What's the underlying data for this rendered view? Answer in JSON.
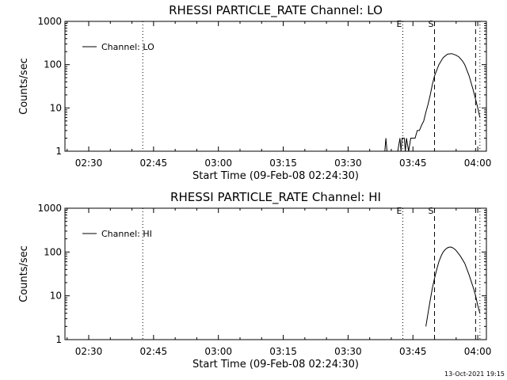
{
  "footer": {
    "date": "13-Oct-2021 19:15"
  },
  "chart_data": [
    {
      "type": "line",
      "title": "RHESSI PARTICLE_RATE Channel: LO",
      "xlabel": "Start Time (09-Feb-08 02:24:30)",
      "ylabel": "Counts/sec",
      "yscale": "log",
      "xlim": [
        "02:24:30",
        "04:02:00"
      ],
      "ylim": [
        1,
        1000
      ],
      "x_ticks": [
        "02:30",
        "02:45",
        "03:00",
        "03:15",
        "03:30",
        "03:45",
        "04:00"
      ],
      "y_ticks": [
        "1",
        "10",
        "100",
        "1000"
      ],
      "legend": {
        "entries": [
          "Channel: LO"
        ],
        "position": "top-left"
      },
      "markers": [
        {
          "label": "",
          "time": "02:42:30",
          "style": "dotted"
        },
        {
          "label": "E",
          "time": "03:42:40",
          "style": "dotted"
        },
        {
          "label": "S",
          "time": "03:50:00",
          "style": "dashed"
        },
        {
          "label": "",
          "time": "03:59:30",
          "style": "dashed"
        },
        {
          "label": "",
          "time": "04:00:30",
          "style": "dotted"
        }
      ],
      "series": [
        {
          "name": "Channel: LO",
          "x": [
            "03:38:30",
            "03:38:45",
            "03:39:00",
            "03:40:00",
            "03:41:00",
            "03:41:30",
            "03:42:00",
            "03:42:15",
            "03:42:30",
            "03:43:00",
            "03:43:15",
            "03:43:30",
            "03:44:00",
            "03:44:30",
            "03:45:00",
            "03:45:30",
            "03:46:00",
            "03:46:30",
            "03:47:00",
            "03:47:30",
            "03:48:00",
            "03:48:30",
            "03:49:00",
            "03:49:30",
            "03:50:00",
            "03:51:00",
            "03:52:00",
            "03:53:00",
            "03:54:00",
            "03:55:00",
            "03:55:40",
            "03:56:30",
            "03:57:00",
            "03:58:00",
            "03:59:00",
            "04:00:00",
            "04:00:30"
          ],
          "y": [
            1,
            2,
            1,
            1,
            1,
            1,
            2,
            1,
            2,
            2,
            1,
            2,
            1,
            2,
            2,
            2,
            3,
            3,
            4,
            5,
            8,
            12,
            20,
            35,
            55,
            100,
            145,
            175,
            180,
            165,
            150,
            120,
            100,
            55,
            25,
            10,
            6
          ]
        }
      ]
    },
    {
      "type": "line",
      "title": "RHESSI PARTICLE_RATE Channel: HI",
      "xlabel": "Start Time (09-Feb-08 02:24:30)",
      "ylabel": "Counts/sec",
      "yscale": "log",
      "xlim": [
        "02:24:30",
        "04:02:00"
      ],
      "ylim": [
        1,
        1000
      ],
      "x_ticks": [
        "02:30",
        "02:45",
        "03:00",
        "03:15",
        "03:30",
        "03:45",
        "04:00"
      ],
      "y_ticks": [
        "1",
        "10",
        "100",
        "1000"
      ],
      "legend": {
        "entries": [
          "Channel: HI"
        ],
        "position": "top-left"
      },
      "markers": [
        {
          "label": "",
          "time": "02:42:30",
          "style": "dotted"
        },
        {
          "label": "E",
          "time": "03:42:40",
          "style": "dotted"
        },
        {
          "label": "S",
          "time": "03:50:00",
          "style": "dashed"
        },
        {
          "label": "",
          "time": "03:59:30",
          "style": "dashed"
        },
        {
          "label": "",
          "time": "04:00:30",
          "style": "dotted"
        }
      ],
      "series": [
        {
          "name": "Channel: HI",
          "x": [
            "03:48:00",
            "03:48:30",
            "03:49:00",
            "03:49:30",
            "03:50:00",
            "03:50:30",
            "03:51:00",
            "03:51:30",
            "03:52:00",
            "03:52:30",
            "03:53:00",
            "03:53:30",
            "03:54:00",
            "03:54:30",
            "03:55:00",
            "03:56:00",
            "03:57:00",
            "03:58:00",
            "03:59:00",
            "03:59:30",
            "04:00:00",
            "04:00:30"
          ],
          "y": [
            2,
            4,
            8,
            15,
            25,
            40,
            60,
            80,
            100,
            115,
            125,
            130,
            128,
            120,
            108,
            80,
            55,
            30,
            15,
            10,
            6,
            4
          ]
        }
      ]
    }
  ]
}
